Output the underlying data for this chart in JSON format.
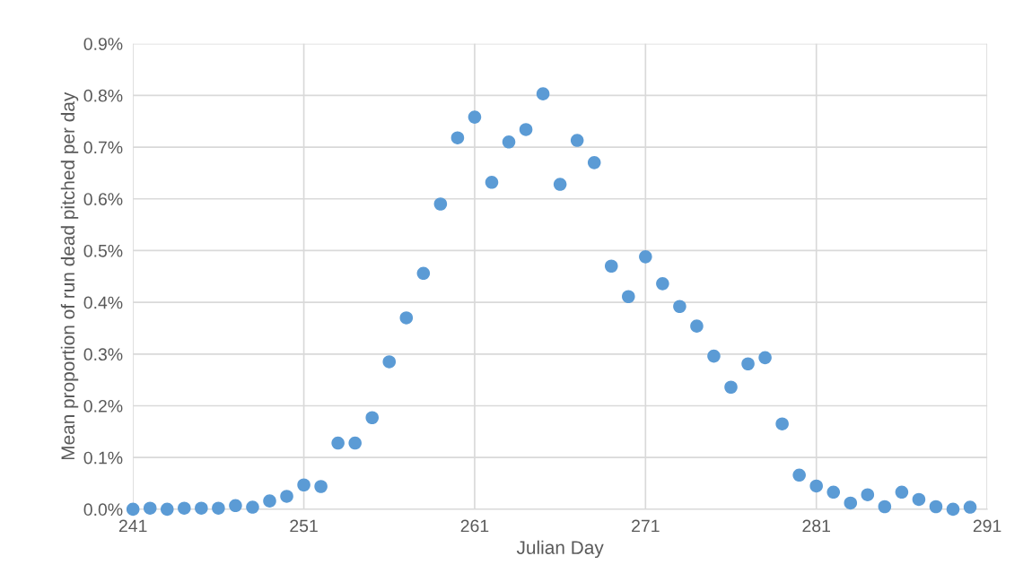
{
  "chart_data": {
    "type": "scatter",
    "xlabel": "Julian Day",
    "ylabel": "Mean proportion of run dead pitched per day",
    "x": [
      241,
      242,
      243,
      244,
      245,
      246,
      247,
      248,
      249,
      250,
      251,
      252,
      253,
      254,
      255,
      256,
      257,
      258,
      259,
      260,
      261,
      262,
      263,
      264,
      265,
      266,
      267,
      268,
      269,
      270,
      271,
      272,
      273,
      274,
      275,
      276,
      277,
      278,
      279,
      280,
      281,
      282,
      283,
      284,
      285,
      286,
      287,
      288,
      289,
      290
    ],
    "series": [
      {
        "color": "#5b9bd5",
        "values": [
          0.0,
          0.002,
          0.0,
          0.002,
          0.002,
          0.002,
          0.007,
          0.004,
          0.016,
          0.025,
          0.047,
          0.044,
          0.128,
          0.128,
          0.177,
          0.285,
          0.37,
          0.456,
          0.59,
          0.718,
          0.758,
          0.632,
          0.71,
          0.734,
          0.803,
          0.628,
          0.713,
          0.67,
          0.47,
          0.411,
          0.488,
          0.436,
          0.392,
          0.354,
          0.296,
          0.236,
          0.281,
          0.293,
          0.165,
          0.066,
          0.045,
          0.033,
          0.012,
          0.028,
          0.005,
          0.033,
          0.019,
          0.005,
          0.0,
          0.004
        ]
      }
    ],
    "xlim": [
      241,
      291
    ],
    "xticks": [
      241,
      251,
      261,
      271,
      281,
      291
    ],
    "ylim": [
      0,
      0.9
    ],
    "yticks": [
      {
        "value": 0,
        "label": "0.0%"
      },
      {
        "value": 0.1,
        "label": "0.1%"
      },
      {
        "value": 0.2,
        "label": "0.2%"
      },
      {
        "value": 0.3,
        "label": "0.3%"
      },
      {
        "value": 0.4,
        "label": "0.4%"
      },
      {
        "value": 0.5,
        "label": "0.5%"
      },
      {
        "value": 0.6,
        "label": "0.6%"
      },
      {
        "value": 0.7,
        "label": "0.7%"
      },
      {
        "value": 0.8,
        "label": "0.8%"
      },
      {
        "value": 0.9,
        "label": "0.9%"
      }
    ],
    "grid": true,
    "marker": "circle"
  }
}
